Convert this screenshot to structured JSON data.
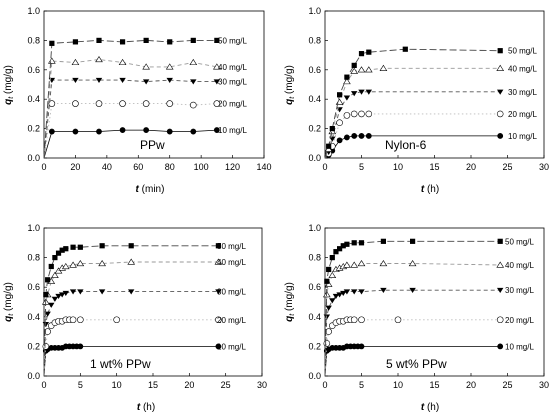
{
  "chart_data": [
    {
      "type": "line",
      "title": "PPw",
      "xlabel_var": "t",
      "xlabel_unit": "(min)",
      "ylabel_var": "q",
      "ylabel_sub": "t",
      "ylabel_unit": "(mg/g)",
      "xlim": [
        0,
        140
      ],
      "ylim": [
        0,
        1.0
      ],
      "xticks": [
        0,
        20,
        40,
        60,
        80,
        100,
        120,
        140
      ],
      "yticks": [
        0.0,
        0.2,
        0.4,
        0.6,
        0.8,
        1.0
      ],
      "series": [
        {
          "name": "10 mg/L",
          "marker": "circle-filled",
          "line": "solid",
          "color": "#000000",
          "x": [
            0,
            5,
            20,
            35,
            50,
            65,
            80,
            95,
            110
          ],
          "y": [
            0,
            0.18,
            0.18,
            0.18,
            0.19,
            0.19,
            0.18,
            0.18,
            0.19
          ]
        },
        {
          "name": "20 mg/L",
          "marker": "circle-open",
          "line": "dotted",
          "color": "#bbbbbb",
          "x": [
            0,
            5,
            20,
            35,
            50,
            65,
            80,
            95,
            110
          ],
          "y": [
            0,
            0.37,
            0.37,
            0.37,
            0.37,
            0.37,
            0.37,
            0.36,
            0.37
          ]
        },
        {
          "name": "30 mg/L",
          "marker": "triangle-down-filled",
          "line": "dashed",
          "color": "#555555",
          "x": [
            0,
            5,
            20,
            35,
            50,
            65,
            80,
            95,
            110
          ],
          "y": [
            0,
            0.53,
            0.53,
            0.53,
            0.53,
            0.52,
            0.53,
            0.52,
            0.52
          ]
        },
        {
          "name": "40 mg/L",
          "marker": "triangle-up-open",
          "line": "dashed",
          "color": "#999999",
          "x": [
            0,
            5,
            20,
            35,
            50,
            65,
            80,
            95,
            110
          ],
          "y": [
            0,
            0.66,
            0.65,
            0.67,
            0.65,
            0.62,
            0.62,
            0.65,
            0.62
          ]
        },
        {
          "name": "50 mg/L",
          "marker": "square-filled",
          "line": "longdash",
          "color": "#444444",
          "x": [
            0,
            5,
            20,
            35,
            50,
            65,
            80,
            95,
            110
          ],
          "y": [
            0,
            0.78,
            0.79,
            0.8,
            0.79,
            0.8,
            0.79,
            0.8,
            0.8
          ]
        }
      ]
    },
    {
      "type": "line",
      "title": "Nylon-6",
      "xlabel_var": "t",
      "xlabel_unit": "(h)",
      "ylabel_var": "q",
      "ylabel_sub": "t",
      "ylabel_unit": "(mg/g)",
      "xlim": [
        0,
        30
      ],
      "ylim": [
        0,
        1.0
      ],
      "xticks": [
        0,
        5,
        10,
        15,
        20,
        25,
        30
      ],
      "yticks": [
        0.0,
        0.2,
        0.4,
        0.6,
        0.8,
        1.0
      ],
      "series": [
        {
          "name": "10 mg/L",
          "marker": "circle-filled",
          "line": "solid",
          "color": "#000000",
          "x": [
            0,
            0.5,
            1,
            2,
            3,
            4,
            5,
            6,
            24
          ],
          "y": [
            0,
            0.02,
            0.05,
            0.12,
            0.14,
            0.15,
            0.15,
            0.15,
            0.15
          ]
        },
        {
          "name": "20 mg/L",
          "marker": "circle-open",
          "line": "dotted",
          "color": "#bbbbbb",
          "x": [
            0,
            0.5,
            1,
            2,
            3,
            4,
            5,
            6,
            24
          ],
          "y": [
            0,
            0.03,
            0.08,
            0.24,
            0.29,
            0.3,
            0.3,
            0.3,
            0.3
          ]
        },
        {
          "name": "30 mg/L",
          "marker": "triangle-down-filled",
          "line": "dashed",
          "color": "#555555",
          "x": [
            0,
            0.5,
            1,
            2,
            3,
            4,
            5,
            6,
            24
          ],
          "y": [
            0,
            0.04,
            0.13,
            0.33,
            0.41,
            0.44,
            0.45,
            0.45,
            0.45
          ]
        },
        {
          "name": "40 mg/L",
          "marker": "triangle-up-open",
          "line": "dashed",
          "color": "#999999",
          "x": [
            0,
            0.5,
            1,
            2,
            3,
            4,
            5,
            6,
            8,
            24
          ],
          "y": [
            0,
            0.06,
            0.18,
            0.38,
            0.52,
            0.59,
            0.6,
            0.6,
            0.61,
            0.61
          ]
        },
        {
          "name": "50 mg/L",
          "marker": "square-filled",
          "line": "longdash",
          "color": "#444444",
          "x": [
            0,
            0.5,
            1,
            2,
            3,
            4,
            5,
            6,
            11,
            24
          ],
          "y": [
            0,
            0.08,
            0.2,
            0.43,
            0.55,
            0.63,
            0.71,
            0.72,
            0.74,
            0.73
          ]
        }
      ]
    },
    {
      "type": "line",
      "title": "1 wt% PPw",
      "xlabel_var": "t",
      "xlabel_unit": "(h)",
      "ylabel_var": "q",
      "ylabel_sub": "t",
      "ylabel_unit": "(mg/g)",
      "xlim": [
        0,
        30
      ],
      "ylim": [
        0,
        1.0
      ],
      "xticks": [
        0,
        5,
        10,
        15,
        20,
        25,
        30
      ],
      "yticks": [
        0.0,
        0.2,
        0.4,
        0.6,
        0.8,
        1.0
      ],
      "series": [
        {
          "name": "10 mg/L",
          "marker": "circle-filled",
          "line": "solid",
          "color": "#000000",
          "x": [
            0,
            0.25,
            0.5,
            1,
            1.5,
            2,
            2.5,
            3,
            3.5,
            4,
            4.5,
            5,
            24
          ],
          "y": [
            0,
            0.17,
            0.18,
            0.19,
            0.19,
            0.19,
            0.19,
            0.2,
            0.2,
            0.2,
            0.2,
            0.2,
            0.2
          ]
        },
        {
          "name": "20 mg/L",
          "marker": "circle-open",
          "line": "dotted",
          "color": "#bbbbbb",
          "x": [
            0,
            0.25,
            0.5,
            1,
            1.5,
            2,
            2.5,
            3,
            3.5,
            4,
            5,
            10,
            24
          ],
          "y": [
            0,
            0.2,
            0.3,
            0.34,
            0.36,
            0.37,
            0.37,
            0.38,
            0.38,
            0.38,
            0.38,
            0.38,
            0.38
          ]
        },
        {
          "name": "30 mg/L",
          "marker": "triangle-down-filled",
          "line": "dashed",
          "color": "#555555",
          "x": [
            0,
            0.25,
            0.5,
            1,
            1.5,
            2,
            2.5,
            3,
            4,
            5,
            8,
            12,
            24
          ],
          "y": [
            0,
            0.35,
            0.42,
            0.48,
            0.52,
            0.54,
            0.55,
            0.56,
            0.57,
            0.57,
            0.57,
            0.57,
            0.57
          ]
        },
        {
          "name": "40 mg/L",
          "marker": "triangle-up-open",
          "line": "dashed",
          "color": "#999999",
          "x": [
            0,
            0.25,
            0.5,
            1,
            1.5,
            2,
            2.5,
            3,
            4,
            5,
            8,
            12,
            24
          ],
          "y": [
            0,
            0.5,
            0.55,
            0.64,
            0.68,
            0.71,
            0.73,
            0.74,
            0.75,
            0.76,
            0.76,
            0.77,
            0.77
          ]
        },
        {
          "name": "50 mg/L",
          "marker": "square-filled",
          "line": "longdash",
          "color": "#444444",
          "x": [
            0,
            0.25,
            0.5,
            1,
            1.5,
            2,
            2.5,
            3,
            4,
            5,
            8,
            12,
            24
          ],
          "y": [
            0,
            0.55,
            0.65,
            0.74,
            0.8,
            0.83,
            0.85,
            0.86,
            0.87,
            0.87,
            0.88,
            0.88,
            0.88
          ]
        }
      ]
    },
    {
      "type": "line",
      "title": "5 wt% PPw",
      "xlabel_var": "t",
      "xlabel_unit": "(h)",
      "ylabel_var": "q",
      "ylabel_sub": "t",
      "ylabel_unit": "(mg/g)",
      "xlim": [
        0,
        30
      ],
      "ylim": [
        0,
        1.0
      ],
      "xticks": [
        0,
        5,
        10,
        15,
        20,
        25,
        30
      ],
      "yticks": [
        0.0,
        0.2,
        0.4,
        0.6,
        0.8,
        1.0
      ],
      "series": [
        {
          "name": "10 mg/L",
          "marker": "circle-filled",
          "line": "solid",
          "color": "#000000",
          "x": [
            0,
            0.25,
            0.5,
            1,
            1.5,
            2,
            2.5,
            3,
            3.5,
            4,
            4.5,
            5,
            24
          ],
          "y": [
            0,
            0.17,
            0.18,
            0.19,
            0.19,
            0.19,
            0.19,
            0.2,
            0.2,
            0.2,
            0.2,
            0.2,
            0.2
          ]
        },
        {
          "name": "20 mg/L",
          "marker": "circle-open",
          "line": "dotted",
          "color": "#bbbbbb",
          "x": [
            0,
            0.25,
            0.5,
            1,
            1.5,
            2,
            2.5,
            3,
            3.5,
            4,
            5,
            10,
            24
          ],
          "y": [
            0,
            0.22,
            0.3,
            0.34,
            0.36,
            0.37,
            0.37,
            0.38,
            0.38,
            0.38,
            0.38,
            0.38,
            0.38
          ]
        },
        {
          "name": "30 mg/L",
          "marker": "triangle-down-filled",
          "line": "dashed",
          "color": "#555555",
          "x": [
            0,
            0.25,
            0.5,
            1,
            1.5,
            2,
            2.5,
            3,
            4,
            5,
            8,
            12,
            24
          ],
          "y": [
            0,
            0.4,
            0.46,
            0.51,
            0.54,
            0.55,
            0.56,
            0.57,
            0.57,
            0.57,
            0.58,
            0.58,
            0.58
          ]
        },
        {
          "name": "40 mg/L",
          "marker": "triangle-up-open",
          "line": "dashed",
          "color": "#999999",
          "x": [
            0,
            0.25,
            0.5,
            1,
            1.5,
            2,
            2.5,
            3,
            4,
            5,
            8,
            12,
            24
          ],
          "y": [
            0,
            0.55,
            0.62,
            0.68,
            0.72,
            0.73,
            0.74,
            0.75,
            0.75,
            0.76,
            0.76,
            0.76,
            0.75
          ]
        },
        {
          "name": "50 mg/L",
          "marker": "square-filled",
          "line": "longdash",
          "color": "#444444",
          "x": [
            0,
            0.25,
            0.5,
            1,
            1.5,
            2,
            2.5,
            3,
            4,
            5,
            8,
            12,
            24
          ],
          "y": [
            0,
            0.64,
            0.72,
            0.8,
            0.84,
            0.86,
            0.88,
            0.89,
            0.9,
            0.9,
            0.91,
            0.91,
            0.91
          ]
        }
      ]
    }
  ]
}
